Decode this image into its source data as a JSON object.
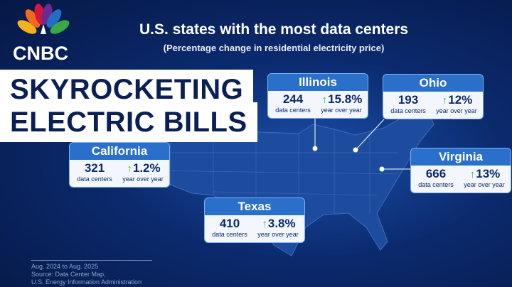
{
  "logo": "CNBC",
  "header": {
    "title": "U.S. states with the most data centers",
    "subtitle": "(Percentage change in residential electricity price)"
  },
  "banner": [
    "SKYROCKETING",
    "ELECTRIC BILLS"
  ],
  "states": [
    {
      "name": "Illinois",
      "count": "244",
      "count_label": "data centers",
      "change": "15.8%",
      "change_label": "year over year"
    },
    {
      "name": "Ohio",
      "count": "193",
      "count_label": "data centers",
      "change": "12%",
      "change_label": "year over year"
    },
    {
      "name": "California",
      "count": "321",
      "count_label": "data centers",
      "change": "1.2%",
      "change_label": "year over year"
    },
    {
      "name": "Virginia",
      "count": "666",
      "count_label": "data centers",
      "change": "13%",
      "change_label": "year over year"
    },
    {
      "name": "Texas",
      "count": "410",
      "count_label": "data centers",
      "change": "3.8%",
      "change_label": "year over year"
    }
  ],
  "footer": [
    "Aug. 2024 to Aug. 2025",
    "Source: Data Center Map,",
    "U.S. Energy Information Administration"
  ]
}
